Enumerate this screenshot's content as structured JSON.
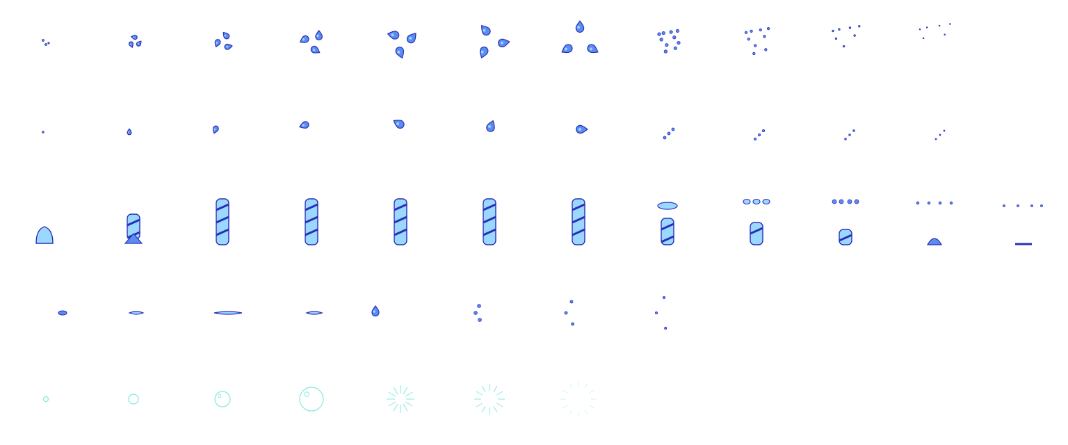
{
  "sheet": {
    "kind": "water effect sprite sheet",
    "frame_grid": {
      "columns": 12,
      "rows": 5
    },
    "background": "#ffffff",
    "palette": {
      "outline": "#2a2fb8",
      "dark": "#3553d6",
      "mid": "#5b8cf0",
      "light": "#9bd8ff",
      "bubble": "#7fe8e0",
      "bubble_faint": "#c8f4f0"
    },
    "rows": [
      {
        "name": "splash-burst",
        "frames": 11
      },
      {
        "name": "single-droplet",
        "frames": 11
      },
      {
        "name": "water-column",
        "frames": 12
      },
      {
        "name": "water-projectile",
        "frames": 8
      },
      {
        "name": "bubble-pop",
        "frames": 7
      }
    ]
  }
}
